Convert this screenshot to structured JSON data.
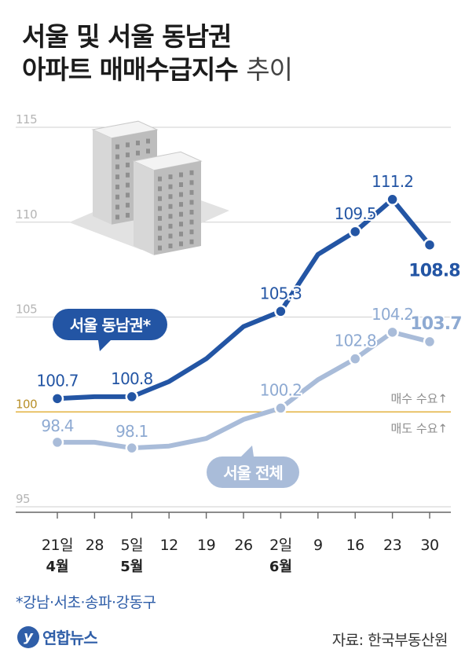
{
  "header": {
    "title_line1": "서울 및 서울 동남권",
    "title_line2_bold": "아파트 매매수급지수",
    "title_line2_light": "추이"
  },
  "footnote": "*강남·서초·송파·강동구",
  "logo": {
    "mark": "y",
    "text": "연합뉴스"
  },
  "source": "자료: 한국부동산원",
  "colors": {
    "dark_series": "#2355a4",
    "light_series": "#a9bcd9",
    "light_label": "#8eaad2",
    "baseline": "#e3b341",
    "grid": "#cfcfcf"
  },
  "chart_data": {
    "type": "line",
    "x": [
      "21일",
      "28",
      "5일",
      "12",
      "19",
      "26",
      "2일",
      "9",
      "16",
      "23",
      "30"
    ],
    "month_labels": [
      {
        "index": 0,
        "label": "4월"
      },
      {
        "index": 2,
        "label": "5월"
      },
      {
        "index": 6,
        "label": "6월"
      }
    ],
    "ylim": [
      95,
      115
    ],
    "yticks": [
      95,
      100,
      105,
      110,
      115
    ],
    "grid": true,
    "baseline": {
      "value": 100,
      "above_label": "매수 수요↑",
      "below_label": "매도 수요↑"
    },
    "series": [
      {
        "name": "서울 동남권*",
        "values": [
          100.7,
          100.8,
          100.8,
          101.6,
          102.8,
          104.5,
          105.3,
          108.3,
          109.5,
          111.2,
          108.8
        ],
        "labels": [
          "100.7",
          null,
          "100.8",
          null,
          null,
          null,
          "105.3",
          null,
          "109.5",
          "111.2",
          "108.8"
        ]
      },
      {
        "name": "서울 전체",
        "values": [
          98.4,
          98.4,
          98.1,
          98.2,
          98.6,
          99.6,
          100.2,
          101.7,
          102.8,
          104.2,
          103.7
        ],
        "labels": [
          "98.4",
          null,
          "98.1",
          null,
          null,
          null,
          "100.2",
          null,
          "102.8",
          "104.2",
          "103.7"
        ]
      }
    ]
  }
}
